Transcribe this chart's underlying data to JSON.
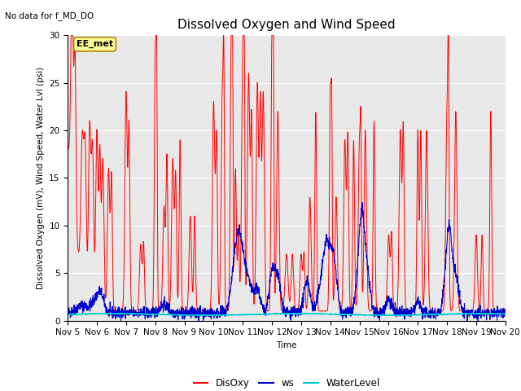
{
  "title": "Dissolved Oxygen and Wind Speed",
  "top_left_text": "No data for f_MD_DO",
  "ylabel": "Dissolved Oxygen (mV), Wind Speed, Water Lvl (psi)",
  "xlabel": "Time",
  "annotation": "EE_met",
  "ylim": [
    0,
    30
  ],
  "xlim": [
    0,
    15
  ],
  "x_tick_labels": [
    "Nov 5",
    "Nov 6",
    "Nov 7",
    "Nov 8",
    "Nov 9",
    "Nov 10",
    "Nov 11",
    "Nov 12",
    "Nov 13",
    "Nov 14",
    "Nov 15",
    "Nov 16",
    "Nov 17",
    "Nov 18",
    "Nov 19",
    "Nov 20"
  ],
  "legend_labels": [
    "DisOxy",
    "ws",
    "WaterLevel"
  ],
  "line_colors": {
    "DisOxy": "#ff0000",
    "ws": "#0000cc",
    "WaterLevel": "#00cccc"
  },
  "bg_color": "#e8e8e8",
  "grid_color": "#ffffff",
  "title_fontsize": 11,
  "label_fontsize": 7.5,
  "tick_fontsize": 7.5
}
